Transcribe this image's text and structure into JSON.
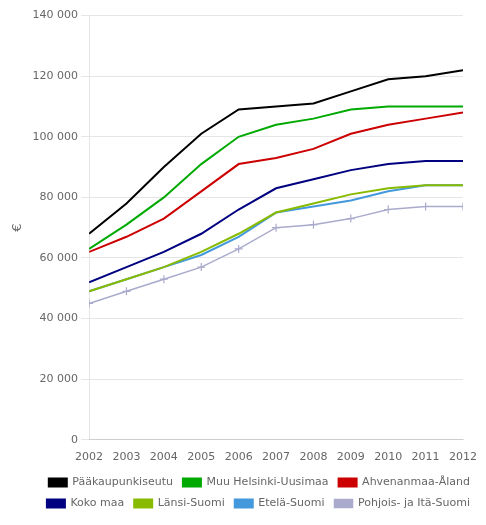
{
  "chart_data": {
    "type": "line",
    "ylabel": "€",
    "x": [
      2002,
      2003,
      2004,
      2005,
      2006,
      2007,
      2008,
      2009,
      2010,
      2011,
      2012
    ],
    "xlim": [
      2002,
      2012
    ],
    "xticks": [
      2002,
      2003,
      2004,
      2005,
      2006,
      2007,
      2008,
      2009,
      2010,
      2011,
      2012
    ],
    "series": [
      {
        "name": "Pääkaupunkiseutu",
        "color": "#000000",
        "values": [
          68000,
          78000,
          90000,
          101000,
          109000,
          110000,
          111000,
          115000,
          119000,
          120000,
          122000
        ]
      },
      {
        "name": "Muu Helsinki-Uusimaa",
        "color": "#00aa00",
        "values": [
          63000,
          71000,
          80000,
          91000,
          100000,
          104000,
          106000,
          109000,
          110000,
          110000,
          110000
        ]
      },
      {
        "name": "Ahvenanmaa-Åland",
        "color": "#cc0000",
        "values": [
          62000,
          67000,
          73000,
          82000,
          91000,
          93000,
          96000,
          101000,
          104000,
          106000,
          108000
        ]
      },
      {
        "name": "Koko maa",
        "color": "#000080",
        "values": [
          52000,
          57000,
          62000,
          68000,
          76000,
          83000,
          86000,
          89000,
          91000,
          92000,
          92000
        ]
      },
      {
        "name": "Länsi-Suomi",
        "color": "#88bb00",
        "values": [
          49000,
          53000,
          57000,
          62000,
          68000,
          75000,
          78000,
          81000,
          83000,
          84000,
          84000
        ]
      },
      {
        "name": "Etelä-Suomi",
        "color": "#4499dd",
        "values": [
          49000,
          53000,
          57000,
          61000,
          67000,
          75000,
          77000,
          79000,
          82000,
          84000,
          84000
        ]
      },
      {
        "name": "Pohjois- ja Itä-Suomi",
        "color": "#aaaacc",
        "marker": "plus",
        "values": [
          45000,
          49000,
          53000,
          57000,
          63000,
          70000,
          71000,
          73000,
          76000,
          77000,
          77000
        ]
      }
    ],
    "ylim": [
      0,
      140000
    ],
    "yticks": [
      0,
      {
        "value": 20000,
        "label": "20 000"
      },
      {
        "value": 40000,
        "label": "40 000"
      },
      {
        "value": 60000,
        "label": "60 000"
      },
      {
        "value": 80000,
        "label": "80 000"
      },
      {
        "value": 100000,
        "label": "100 000"
      },
      {
        "value": 120000,
        "label": "120 000"
      },
      {
        "value": 140000,
        "label": "140 000"
      }
    ],
    "grid": true,
    "legend": "lower right"
  }
}
